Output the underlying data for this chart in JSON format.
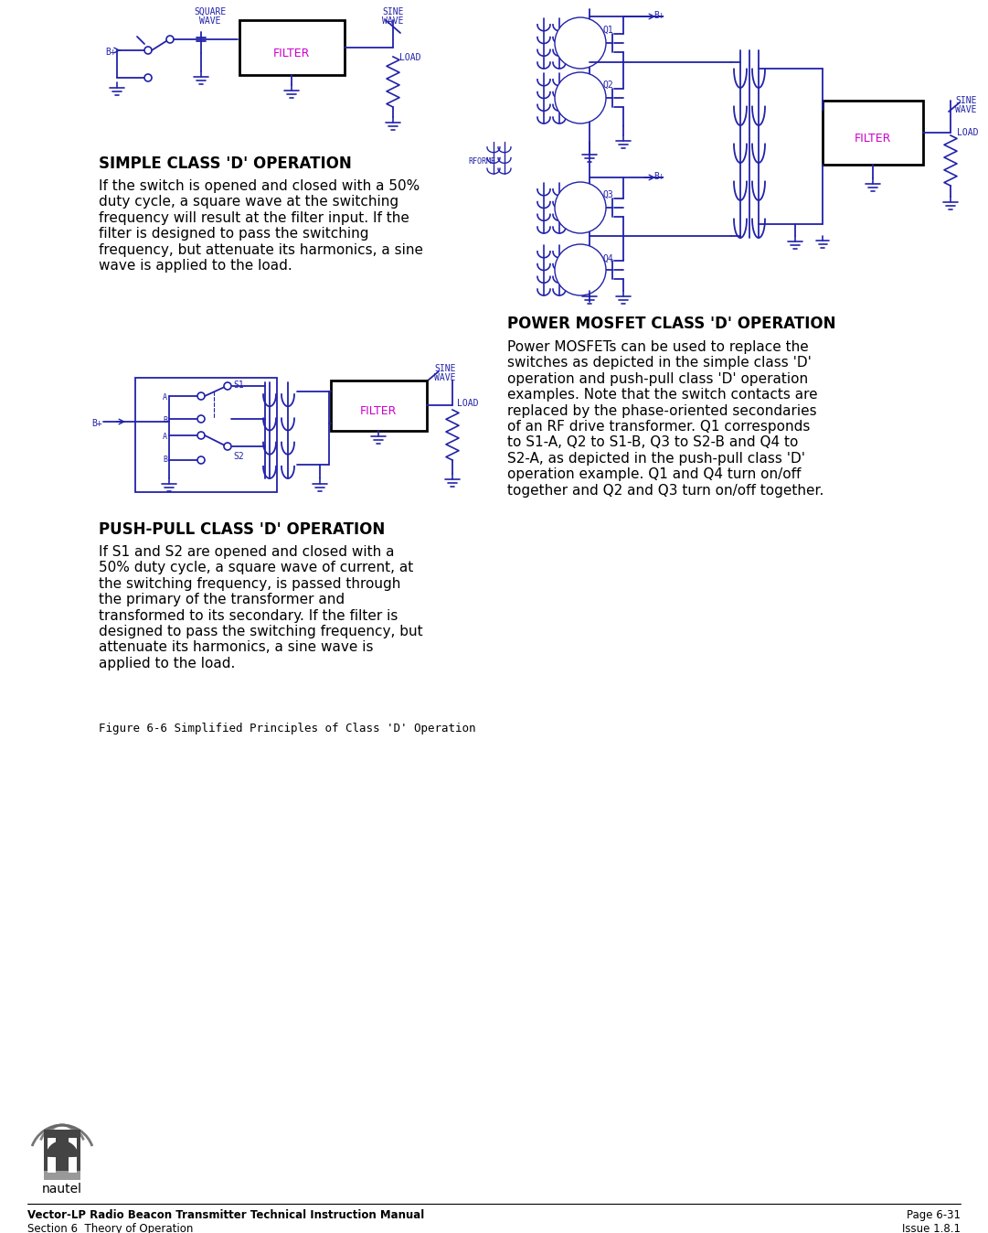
{
  "bg_color": "#ffffff",
  "diagram_color": "#2222aa",
  "filter_text_color": "#cc00cc",
  "text_color": "#000000",
  "footer_left_line1": "Vector-LP Radio Beacon Transmitter Technical Instruction Manual",
  "footer_left_line2": "Section 6  Theory of Operation",
  "footer_right_line1": "Page 6-31",
  "footer_right_line2": "Issue 1.8.1",
  "section1_heading": "SIMPLE CLASS 'D' OPERATION",
  "section1_body": "If the switch is opened and closed with a 50%\nduty cycle, a square wave at the switching\nfrequency will result at the filter input. If the\nfilter is designed to pass the switching\nfrequency, but attenuate its harmonics, a sine\nwave is applied to the load.",
  "section2_heading": "PUSH-PULL CLASS 'D' OPERATION",
  "section2_body": "If S1 and S2 are opened and closed with a\n50% duty cycle, a square wave of current, at\nthe switching frequency, is passed through\nthe primary of the transformer and\ntransformed to its secondary. If the filter is\ndesigned to pass the switching frequency, but\nattenuate its harmonics, a sine wave is\napplied to the load.",
  "section3_heading": "POWER MOSFET CLASS 'D' OPERATION",
  "section3_body": "Power MOSFETs can be used to replace the\nswitches as depicted in the simple class 'D'\noperation and push-pull class 'D' operation\nexamples. Note that the switch contacts are\nreplaced by the phase-oriented secondaries\nof an RF drive transformer. Q1 corresponds\nto S1-A, Q2 to S1-B, Q3 to S2-B and Q4 to\nS2-A, as depicted in the push-pull class 'D'\noperation example. Q1 and Q4 turn on/off\ntogether and Q2 and Q3 turn on/off together.",
  "figure_caption": "Figure 6-6 Simplified Principles of Class 'D' Operation"
}
